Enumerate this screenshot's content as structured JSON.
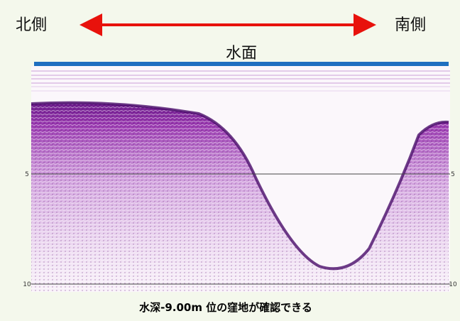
{
  "header": {
    "left_label": "北側",
    "right_label": "南側",
    "surface_label": "水面"
  },
  "depth_labels": [
    "5",
    "10"
  ],
  "caption": "水深-9.00m 位の窪地が確認できる"
}
